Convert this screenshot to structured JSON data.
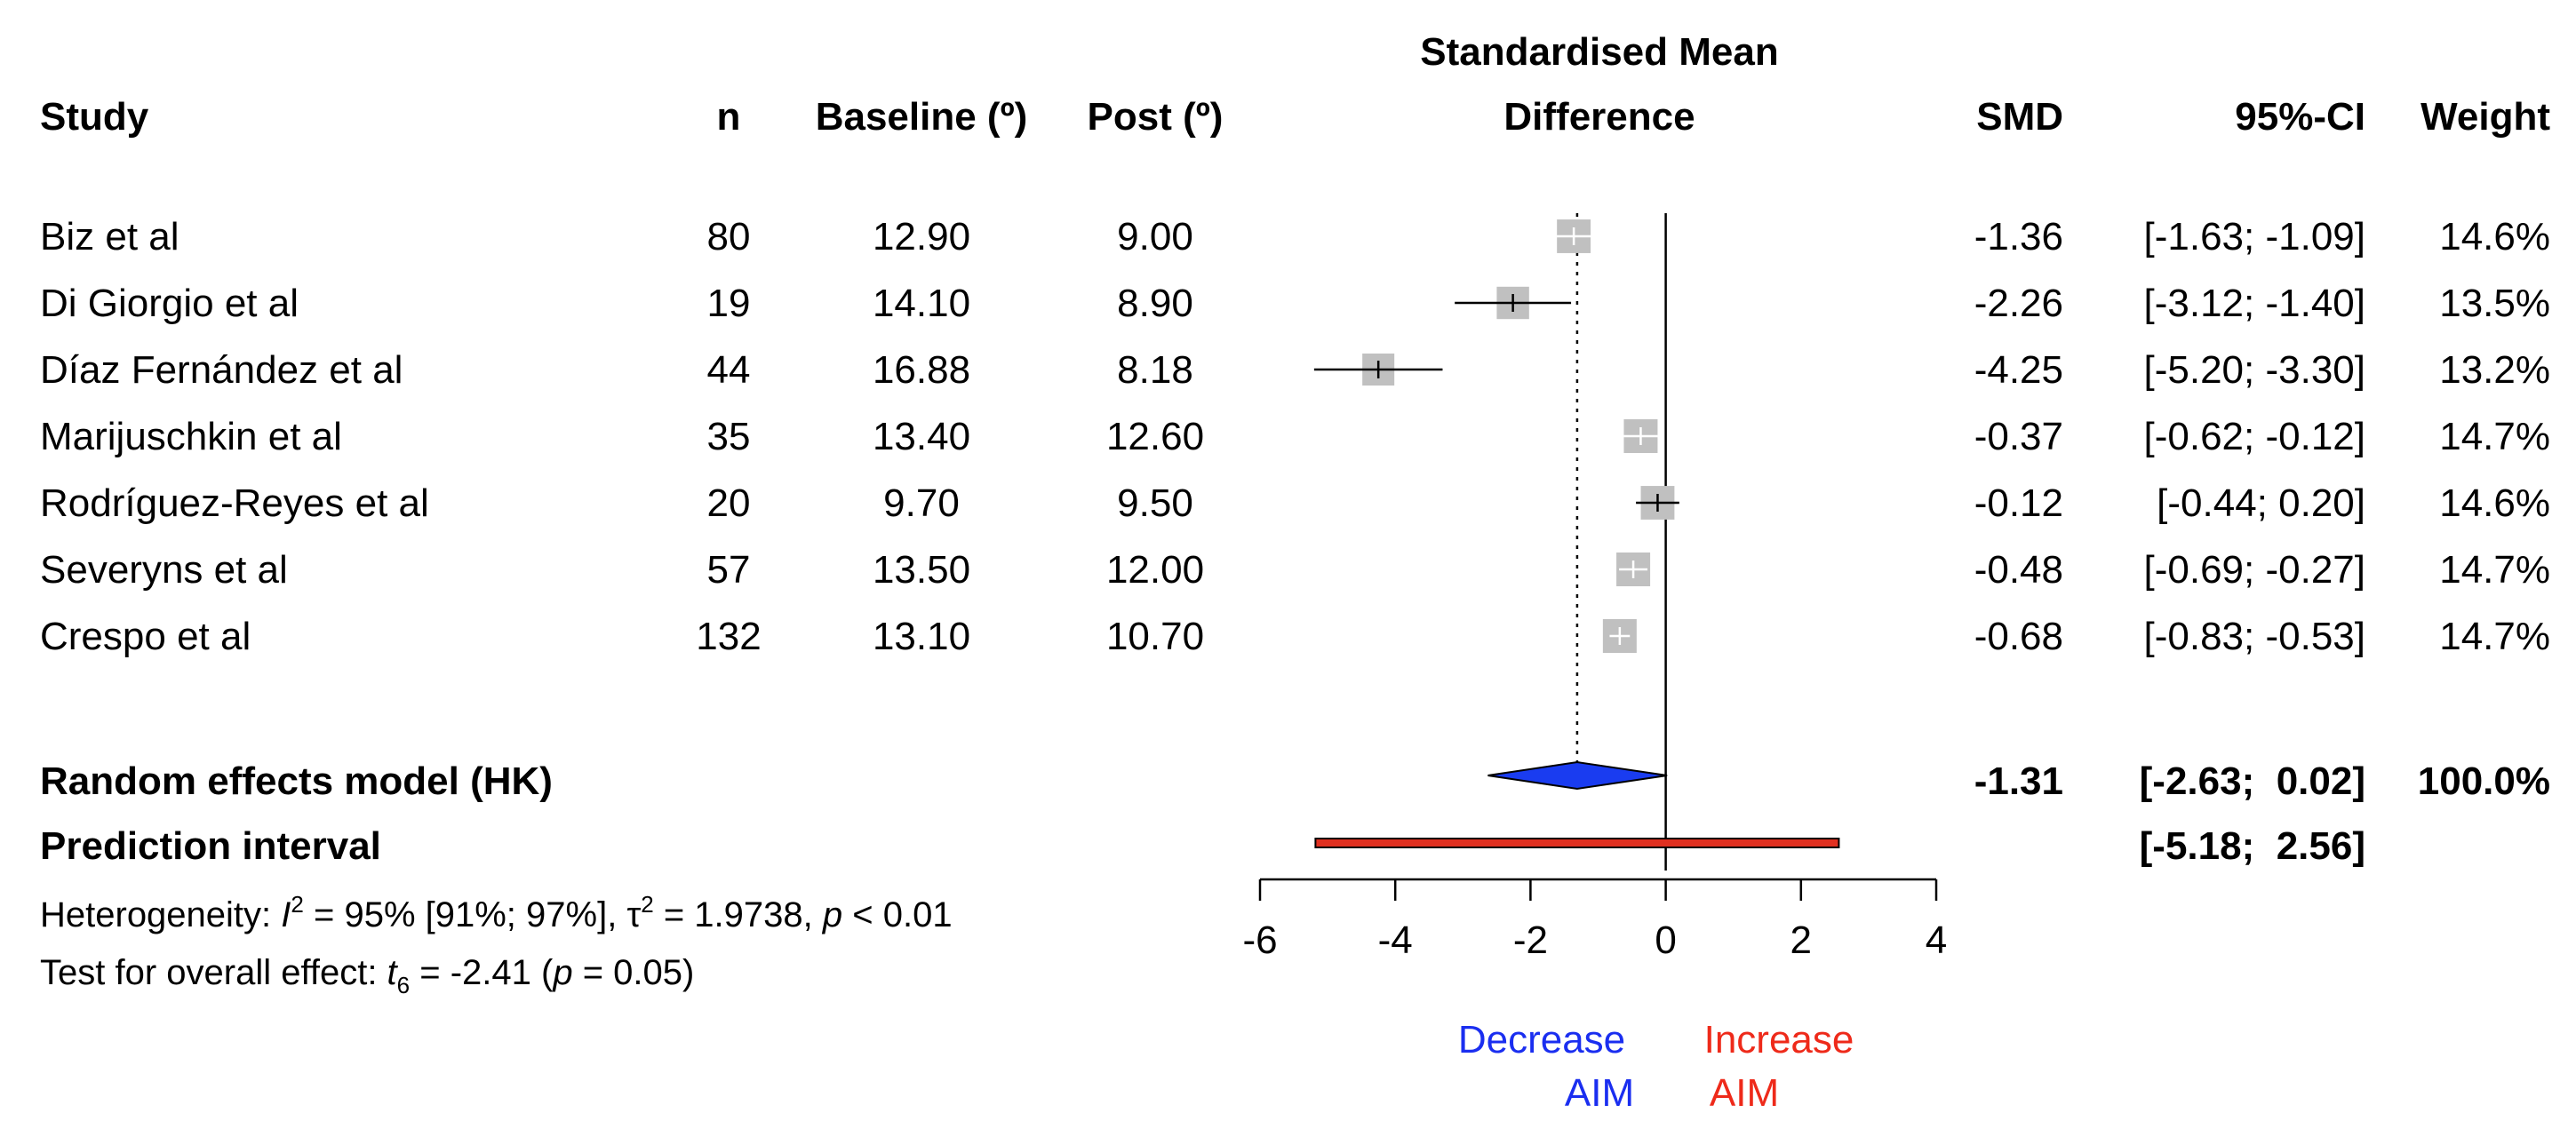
{
  "chart_data": {
    "type": "forest",
    "headers": {
      "study": "Study",
      "n": "n",
      "baseline": "Baseline (º)",
      "post": "Post (º)",
      "plot_title_line1": "Standardised Mean",
      "plot_title_line2": "Difference",
      "smd": "SMD",
      "ci": "95%-CI",
      "weight": "Weight"
    },
    "studies": [
      {
        "name": "Biz et al",
        "n": "80",
        "baseline": "12.90",
        "post": "9.00",
        "smd": -1.36,
        "lower": -1.63,
        "upper": -1.09,
        "smd_text": "-1.36",
        "ci_text": "[-1.63; -1.09]",
        "weight_text": "14.6%",
        "weight": 14.6
      },
      {
        "name": "Di Giorgio et al",
        "n": "19",
        "baseline": "14.10",
        "post": "8.90",
        "smd": -2.26,
        "lower": -3.12,
        "upper": -1.4,
        "smd_text": "-2.26",
        "ci_text": "[-3.12; -1.40]",
        "weight_text": "13.5%",
        "weight": 13.5
      },
      {
        "name": "Díaz Fernández et al",
        "n": "44",
        "baseline": "16.88",
        "post": "8.18",
        "smd": -4.25,
        "lower": -5.2,
        "upper": -3.3,
        "smd_text": "-4.25",
        "ci_text": "[-5.20; -3.30]",
        "weight_text": "13.2%",
        "weight": 13.2
      },
      {
        "name": "Marijuschkin et al",
        "n": "35",
        "baseline": "13.40",
        "post": "12.60",
        "smd": -0.37,
        "lower": -0.62,
        "upper": -0.12,
        "smd_text": "-0.37",
        "ci_text": "[-0.62; -0.12]",
        "weight_text": "14.7%",
        "weight": 14.7
      },
      {
        "name": "Rodríguez-Reyes et al",
        "n": "20",
        "baseline": "9.70",
        "post": "9.50",
        "smd": -0.12,
        "lower": -0.44,
        "upper": 0.2,
        "smd_text": "-0.12",
        "ci_text": "[-0.44;  0.20]",
        "weight_text": "14.6%",
        "weight": 14.6
      },
      {
        "name": "Severyns et al",
        "n": "57",
        "baseline": "13.50",
        "post": "12.00",
        "smd": -0.48,
        "lower": -0.69,
        "upper": -0.27,
        "smd_text": "-0.48",
        "ci_text": "[-0.69; -0.27]",
        "weight_text": "14.7%",
        "weight": 14.7
      },
      {
        "name": "Crespo et al",
        "n": "132",
        "baseline": "13.10",
        "post": "10.70",
        "smd": -0.68,
        "lower": -0.83,
        "upper": -0.53,
        "smd_text": "-0.68",
        "ci_text": "[-0.83; -0.53]",
        "weight_text": "14.7%",
        "weight": 14.7
      }
    ],
    "random_effects": {
      "label": "Random effects model (HK)",
      "smd": -1.31,
      "lower": -2.63,
      "upper": 0.02,
      "smd_text": "-1.31",
      "ci_text": "[-2.63;  0.02]",
      "weight_text": "100.0%"
    },
    "prediction_interval": {
      "label": "Prediction interval",
      "lower": -5.18,
      "upper": 2.56,
      "ci_text": "[-5.18;  2.56]"
    },
    "heterogeneity": {
      "prefix": "Heterogeneity: ",
      "i2_symbol": "I",
      "i2_exp": "2",
      "i2_value": " = 95% [91%; 97%], ",
      "tau_symbol": "τ",
      "tau_exp": "2",
      "tau_value": " = 1.9738, ",
      "p_symbol": "p",
      "p_value": " < 0.01"
    },
    "overall_effect": {
      "prefix": "Test for overall effect: ",
      "t_symbol": "t",
      "t_sub": "6",
      "t_value": " = -2.41 (",
      "p_symbol": "p",
      "p_value": " = 0.05)"
    },
    "x_axis": {
      "min": -6,
      "max": 4,
      "ticks": [
        -6,
        -4,
        -2,
        0,
        2,
        4
      ],
      "tick_labels": [
        "-6",
        "-4",
        "-2",
        "0",
        "2",
        "4"
      ]
    },
    "direction_labels": {
      "decrease_line1": "Decrease",
      "decrease_line2": "AIM",
      "increase_line1": "Increase",
      "increase_line2": "AIM"
    },
    "colors": {
      "square": "#c0c0c0",
      "diamond": "#1a3cf0",
      "prediction": "#e03020",
      "decrease": "#1a2ef0",
      "increase": "#ee2a1a"
    }
  }
}
